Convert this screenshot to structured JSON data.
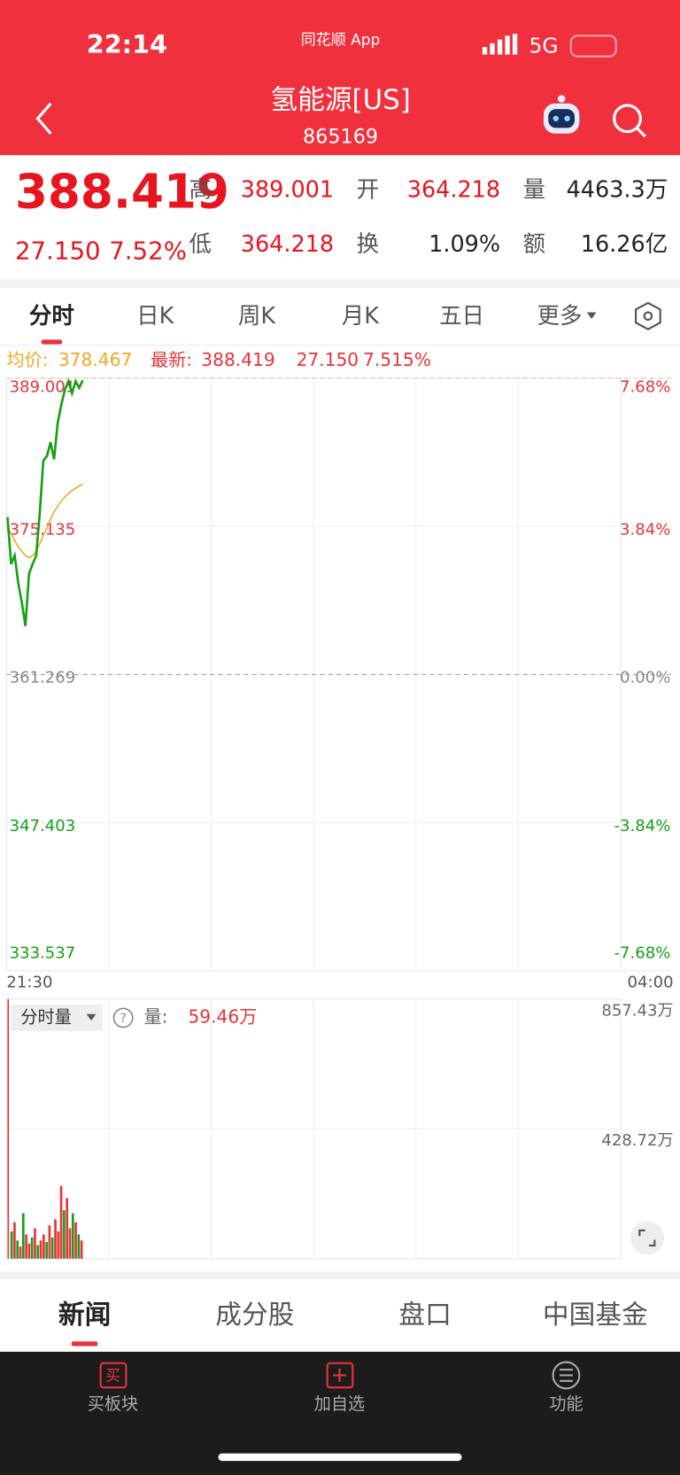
{
  "status_bar": {
    "time": "22:14",
    "app": "同花顺 App",
    "network": "5G"
  },
  "header": {
    "title": "氢能源[US]",
    "code": "865169"
  },
  "quote": {
    "price": "388.419",
    "change": "27.150",
    "change_pct": "7.52%",
    "high_label": "高",
    "high": "389.001",
    "open_label": "开",
    "open": "364.218",
    "volume_label": "量",
    "volume": "4463.3万",
    "low_label": "低",
    "low": "364.218",
    "turnover_label": "换",
    "turnover": "1.09%",
    "amount_label": "额",
    "amount": "16.26亿"
  },
  "tabs": [
    "分时",
    "日K",
    "周K",
    "月K",
    "五日",
    "更多"
  ],
  "info": {
    "avg_label": "均价:",
    "avg": "378.467",
    "latest_label": "最新:",
    "latest": "388.419",
    "change": "27.150",
    "change_pct": "7.515%"
  },
  "price_chart": {
    "ylim": [
      333.537,
      389.001
    ],
    "yticks": [
      389.001,
      375.135,
      361.269,
      347.403,
      333.537
    ],
    "pct_ticks": [
      "7.68%",
      "3.84%",
      "0.00%",
      "-3.84%",
      "-7.68%"
    ],
    "x_start": "21:30",
    "x_end": "04:00",
    "price": [
      376.0,
      371.6,
      372.4,
      369.8,
      368.0,
      365.8,
      370.7,
      371.6,
      372.4,
      376.4,
      381.3,
      381.7,
      383.0,
      381.4,
      384.8,
      386.5,
      387.9,
      388.7,
      387.6,
      388.7,
      388.1,
      388.8
    ],
    "price_color": "#16a016",
    "avg": [
      375.0,
      374.5,
      373.8,
      373.2,
      372.8,
      372.4,
      372.2,
      372.4,
      372.8,
      373.5,
      374.3,
      375.0,
      375.8,
      376.5,
      377.0,
      377.5,
      377.9,
      378.2,
      378.5,
      378.7,
      378.9,
      379.1
    ],
    "avg_color": "#f5a623"
  },
  "volume_chart": {
    "selector": "分时量",
    "volume_label": "量:",
    "volume": "59.46万",
    "ylim": [
      0,
      857.43
    ],
    "yticks": [
      {
        "value": 857.43,
        "label": "857.43万"
      },
      {
        "value": 428.72,
        "label": "428.72万"
      }
    ],
    "values": [
      857,
      90,
      120,
      60,
      40,
      150,
      80,
      50,
      70,
      100,
      45,
      60,
      80,
      55,
      110,
      70,
      130,
      90,
      240,
      160,
      200,
      100,
      150,
      120,
      80,
      60
    ],
    "colors": [
      "#e8333b",
      "#16a016",
      "#e8333b",
      "#16a016",
      "#e8333b",
      "#16a016",
      "#e8333b",
      "#e8333b",
      "#16a016",
      "#e8333b",
      "#16a016",
      "#e8333b",
      "#e8333b",
      "#16a016",
      "#e8333b",
      "#16a016",
      "#e8333b",
      "#e8333b",
      "#e8333b",
      "#16a016",
      "#e8333b",
      "#e8333b",
      "#16a016",
      "#e8333b",
      "#16a016",
      "#e8333b"
    ]
  },
  "bottom_tabs": [
    "新闻",
    "成分股",
    "盘口",
    "中国基金"
  ],
  "toolbar": [
    {
      "icon": "买",
      "label": "买板块"
    },
    {
      "label": "加自选"
    },
    {
      "label": "功能"
    }
  ]
}
